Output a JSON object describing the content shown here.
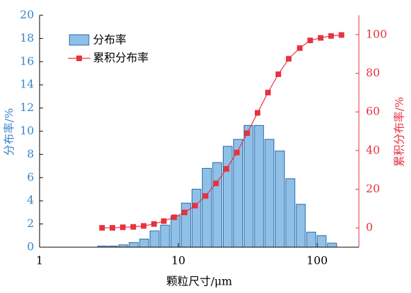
{
  "chart_data": {
    "type": "histogram",
    "x_label": "颗粒尺寸/μm",
    "y_label": "分布率/%",
    "y2_label": "累积分布率/%",
    "bins": [
      2.6,
      3.09,
      3.68,
      4.37,
      5.2,
      6.18,
      7.35,
      8.74,
      10.4,
      12.4,
      14.7,
      17.5,
      20.8,
      24.7,
      29.4,
      35.0,
      41.6,
      49.4,
      58.8,
      69.9,
      83.1,
      98.8,
      117.5,
      139.7
    ],
    "series": [
      {
        "name": "分布率",
        "color": "#8fc0e8",
        "edge_color": "#2a6aa8",
        "values": [
          0.1,
          0.1,
          0.2,
          0.4,
          0.7,
          1.4,
          1.9,
          2.7,
          3.8,
          5.0,
          6.8,
          7.3,
          8.7,
          9.3,
          10.5,
          10.5,
          9.3,
          8.3,
          5.9,
          3.7,
          1.3,
          1.0,
          0.35
        ]
      },
      {
        "name": "累积分布率",
        "color": "#e8323f",
        "type": "line",
        "axis": "y2",
        "x": [
          2.82,
          3.35,
          3.98,
          4.73,
          5.62,
          6.68,
          7.85,
          9.33,
          11.1,
          13.2,
          15.7,
          18.7,
          22.2,
          26.4,
          31.3,
          37.2,
          44.2,
          52.5,
          62.4,
          74.9,
          89.1,
          106,
          126,
          149.6
        ],
        "values": [
          0,
          0,
          0.3,
          0.5,
          1,
          2,
          3.5,
          5.5,
          8,
          11.5,
          16.5,
          23,
          30.5,
          39,
          49,
          59.5,
          70,
          79.5,
          87.5,
          93,
          97,
          98.3,
          99.3,
          99.8
        ]
      }
    ],
    "x_scale": "log",
    "xlim": [
      1,
      200
    ],
    "xticks": [
      1,
      10,
      100
    ],
    "ylim": [
      0,
      20
    ],
    "yticks": [
      0,
      2,
      4,
      6,
      8,
      10,
      12,
      14,
      16,
      18,
      20
    ],
    "y2lim": [
      -10,
      110
    ],
    "y2ticks": [
      0,
      20,
      40,
      60,
      80,
      100
    ],
    "y_color": "#3a86c8",
    "y2_color": "#e8323f",
    "legend": "upper left"
  }
}
